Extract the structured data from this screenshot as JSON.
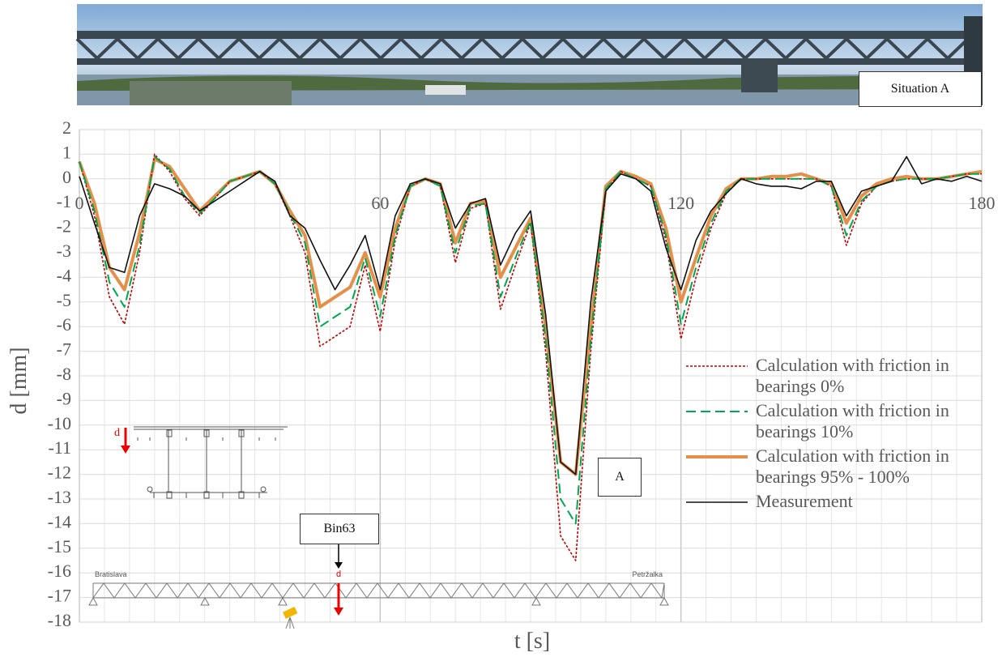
{
  "chart_data": {
    "type": "line",
    "x_label": "t [s]",
    "y_label": "d [mm]",
    "xlim": [
      0,
      180
    ],
    "xticks": [
      0,
      60,
      120,
      180
    ],
    "ylim": [
      -18,
      2
    ],
    "yticks": [
      2,
      1,
      0,
      -1,
      -2,
      -3,
      -4,
      -5,
      -6,
      -7,
      -8,
      -9,
      -10,
      -11,
      -12,
      -13,
      -14,
      -15,
      -16,
      -17,
      -18
    ],
    "grid": true,
    "legend": "lower-right",
    "x": [
      0,
      3,
      6,
      9,
      12,
      15,
      18,
      21,
      24,
      27,
      30,
      33,
      36,
      39,
      42,
      45,
      48,
      51,
      54,
      57,
      60,
      63,
      66,
      69,
      72,
      75,
      78,
      81,
      84,
      87,
      90,
      93,
      96,
      99,
      102,
      105,
      108,
      111,
      114,
      117,
      120,
      123,
      126,
      129,
      132,
      135,
      138,
      141,
      144,
      147,
      150,
      153,
      156,
      159,
      162,
      165,
      168,
      171,
      174,
      177,
      180
    ],
    "series": [
      {
        "name": "Calculation with friction in bearings 0%",
        "color": "#c00000",
        "style": "dotted",
        "values": [
          0.7,
          -1.5,
          -4.8,
          -5.9,
          -3,
          1.0,
          0.3,
          -0.8,
          -1.5,
          -0.8,
          -0.1,
          0.1,
          0.3,
          -0.2,
          -1.5,
          -3,
          -6.8,
          -6.4,
          -6,
          -3.5,
          -6.2,
          -2.5,
          -0.3,
          0,
          -0.3,
          -3.4,
          -1.2,
          -1,
          -5.3,
          -3.5,
          -1.8,
          -7,
          -14.5,
          -15.5,
          -7,
          -0.5,
          0.3,
          0,
          -0.3,
          -2.5,
          -6.5,
          -4,
          -2,
          -0.6,
          0,
          0,
          0,
          0,
          0,
          0,
          -0.3,
          -2.7,
          -1,
          -0.3,
          -0.1,
          0,
          0,
          0,
          0.1,
          0.2,
          0.2
        ]
      },
      {
        "name": "Calculation with friction in bearings 10%",
        "color": "#00a651",
        "style": "dashed",
        "values": [
          0.7,
          -1.3,
          -4.2,
          -5.2,
          -2.7,
          0.9,
          0.4,
          -0.7,
          -1.4,
          -0.8,
          -0.1,
          0.1,
          0.3,
          -0.2,
          -1.4,
          -2.6,
          -6,
          -5.6,
          -5.2,
          -3.2,
          -5.6,
          -2.3,
          -0.3,
          0,
          -0.3,
          -3,
          -1.1,
          -1,
          -4.8,
          -3.2,
          -1.7,
          -6.5,
          -13,
          -14,
          -6.5,
          -0.4,
          0.3,
          0,
          -0.3,
          -2.3,
          -5.9,
          -3.6,
          -1.8,
          -0.5,
          0,
          0,
          0,
          0,
          0,
          0,
          -0.3,
          -2.3,
          -0.9,
          -0.3,
          -0.1,
          0,
          0,
          0,
          0.1,
          0.2,
          0.2
        ]
      },
      {
        "name": "Calculation with friction in bearings 95% - 100%",
        "color": "#e5904a",
        "style": "thick",
        "values": [
          0.7,
          -1,
          -3.6,
          -4.5,
          -2.2,
          0.8,
          0.5,
          -0.4,
          -1.3,
          -0.7,
          -0.1,
          0.1,
          0.3,
          -0.2,
          -1.3,
          -2.3,
          -5.2,
          -4.8,
          -4.4,
          -3,
          -4.8,
          -2,
          -0.3,
          0,
          -0.2,
          -2.6,
          -1,
          -0.9,
          -4,
          -2.8,
          -1.6,
          -6,
          -11.5,
          -12,
          -6,
          -0.3,
          0.3,
          0.1,
          -0.2,
          -2,
          -5,
          -3.2,
          -1.5,
          -0.4,
          0,
          0,
          0.1,
          0.1,
          0.2,
          0,
          -0.2,
          -1.8,
          -0.7,
          -0.2,
          0,
          0.1,
          0,
          0,
          0.1,
          0.2,
          0.3
        ]
      },
      {
        "name": "Measurement",
        "color": "#111111",
        "style": "solid",
        "values": [
          0.1,
          -1.8,
          -3.6,
          -3.8,
          -1.5,
          -0.2,
          -0.4,
          -0.7,
          -1.3,
          -0.9,
          -0.5,
          -0.1,
          0.3,
          -0.1,
          -1.5,
          -2,
          -3.3,
          -4.5,
          -3.5,
          -2.3,
          -4.5,
          -1.5,
          -0.2,
          0,
          -0.2,
          -2,
          -1,
          -0.8,
          -3.5,
          -2.2,
          -1.3,
          -5.5,
          -11.5,
          -12,
          -5,
          -0.5,
          0.2,
          0,
          -0.5,
          -2.8,
          -4.5,
          -2.5,
          -1.3,
          -0.6,
          0,
          -0.2,
          -0.3,
          -0.3,
          -0.4,
          -0.1,
          -0.1,
          -1.5,
          -0.5,
          -0.3,
          -0.1,
          0.9,
          -0.2,
          0,
          -0.1,
          0.1,
          -0.1
        ]
      }
    ],
    "annotations": {
      "situation": "Situation A",
      "point": "A",
      "sensor": "Bin63",
      "left_bank": "Bratislava",
      "right_bank": "Petržalka",
      "section_arrow": "d",
      "elevation_arrow": "d"
    }
  }
}
